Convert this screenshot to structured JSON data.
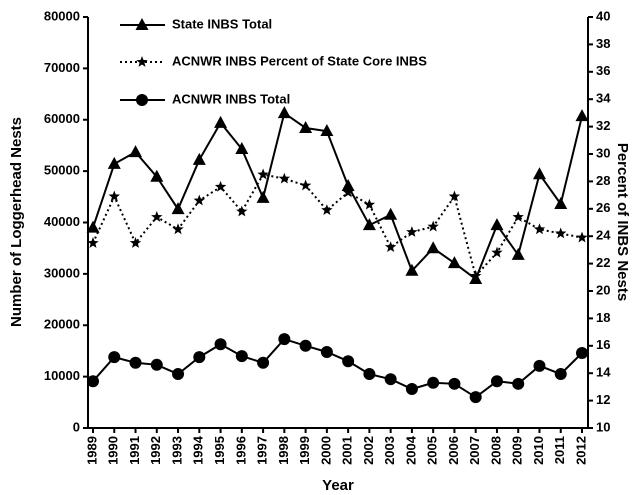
{
  "chart_data": {
    "type": "line",
    "x_label": "Year",
    "y_label": "Number of Loggerhead Nests",
    "y2_label": "Percent of INBS Nests",
    "categories": [
      "1989",
      "1990",
      "1991",
      "1992",
      "1993",
      "1994",
      "1995",
      "1996",
      "1997",
      "1998",
      "1999",
      "2000",
      "2001",
      "2002",
      "2003",
      "2004",
      "2005",
      "2006",
      "2007",
      "2008",
      "2009",
      "2010",
      "2011",
      "2012"
    ],
    "series": [
      {
        "name": "State INBS Total",
        "color": "#000000",
        "marker": "triangle",
        "line_style": "solid",
        "values": [
          39000,
          51400,
          53700,
          48900,
          42600,
          52200,
          59400,
          54300,
          44800,
          61300,
          58400,
          57800,
          47100,
          39500,
          41500,
          30600,
          35000,
          32100,
          29000,
          39500,
          33700,
          49400,
          43600,
          60700
        ]
      },
      {
        "name": "ACNWR INBS Percent of State Core INBS",
        "color": "#000000",
        "marker": "star",
        "line_style": "dotted",
        "axis": "y2",
        "values": [
          23.5,
          26.9,
          23.5,
          25.4,
          24.5,
          26.6,
          27.6,
          25.8,
          28.5,
          28.2,
          27.7,
          25.9,
          27.2,
          26.3,
          23.2,
          24.3,
          24.7,
          26.9,
          21.1,
          22.8,
          25.4,
          24.5,
          24.2,
          23.9
        ]
      },
      {
        "name": "ACNWR INBS Total",
        "color": "#000000",
        "marker": "circle",
        "line_style": "solid",
        "values": [
          9100,
          13800,
          12700,
          12300,
          10500,
          13800,
          16300,
          14000,
          12700,
          17300,
          16000,
          14800,
          13000,
          10500,
          9500,
          7600,
          8800,
          8600,
          6000,
          9100,
          8600,
          12100,
          10500,
          14600
        ]
      }
    ],
    "ylim": [
      0,
      80000
    ],
    "yticks": [
      0,
      10000,
      20000,
      30000,
      40000,
      50000,
      60000,
      70000,
      80000
    ],
    "y2lim": [
      10,
      40
    ],
    "y2ticks": [
      10,
      12,
      14,
      16,
      18,
      20,
      22,
      24,
      26,
      28,
      30,
      32,
      34,
      36,
      38,
      40
    ],
    "grid": false,
    "legend": "upper left"
  }
}
